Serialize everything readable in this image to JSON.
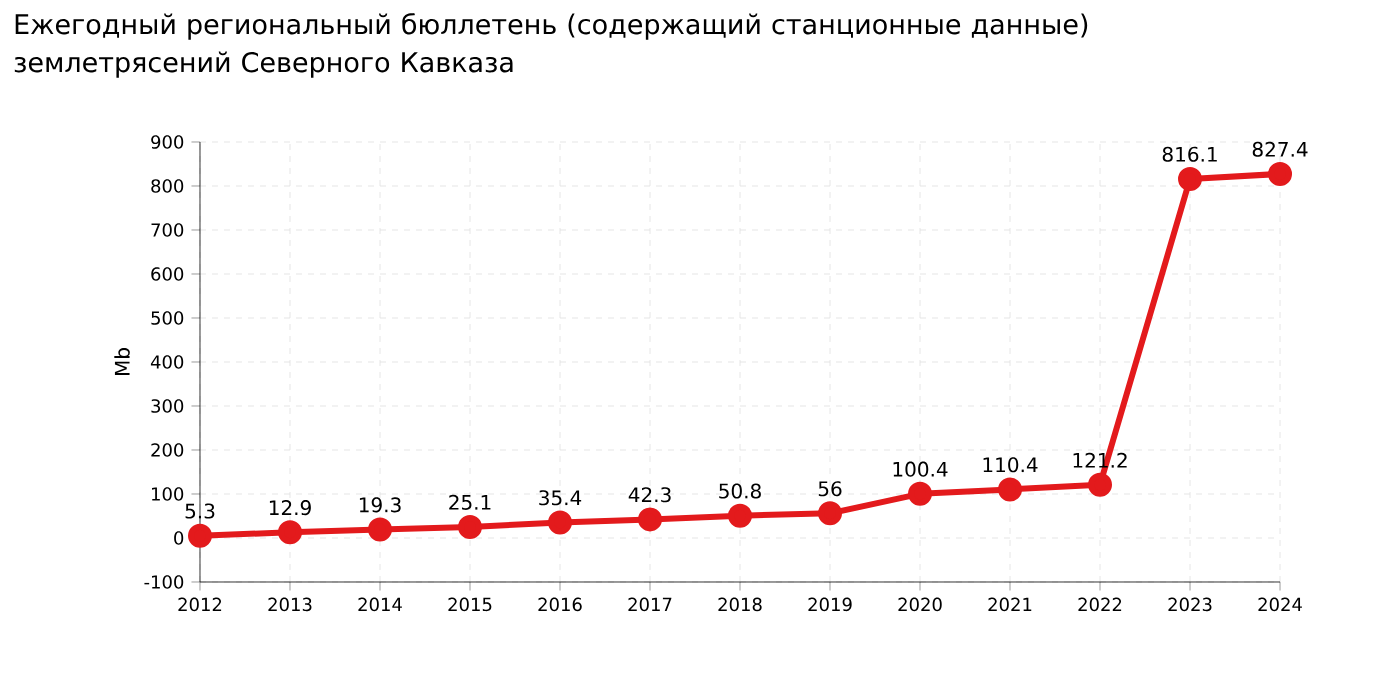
{
  "chart_data": {
    "type": "line",
    "title": "Ежегодный региональный бюллетень (содержащий станционные данные) землетрясений Северного Кавказа",
    "ylabel": "Mb",
    "x": [
      2012,
      2013,
      2014,
      2015,
      2016,
      2017,
      2018,
      2019,
      2020,
      2021,
      2022,
      2023,
      2024
    ],
    "series": [
      {
        "color": "#e31a1c",
        "values": [
          5.3,
          12.9,
          19.3,
          25.1,
          35.4,
          42.3,
          50.8,
          56,
          100.4,
          110.4,
          121.2,
          816.1,
          827.4
        ]
      }
    ],
    "xlim": [
      2012,
      2024
    ],
    "xticks": [
      2012,
      2013,
      2014,
      2015,
      2016,
      2017,
      2018,
      2019,
      2020,
      2021,
      2022,
      2023,
      2024
    ],
    "ylim": [
      -100,
      900
    ],
    "yticks": [
      -100,
      0,
      100,
      200,
      300,
      400,
      500,
      600,
      700,
      800,
      900
    ],
    "grid": true,
    "marker": "circle",
    "line_style": "solid",
    "data_labels": true
  }
}
